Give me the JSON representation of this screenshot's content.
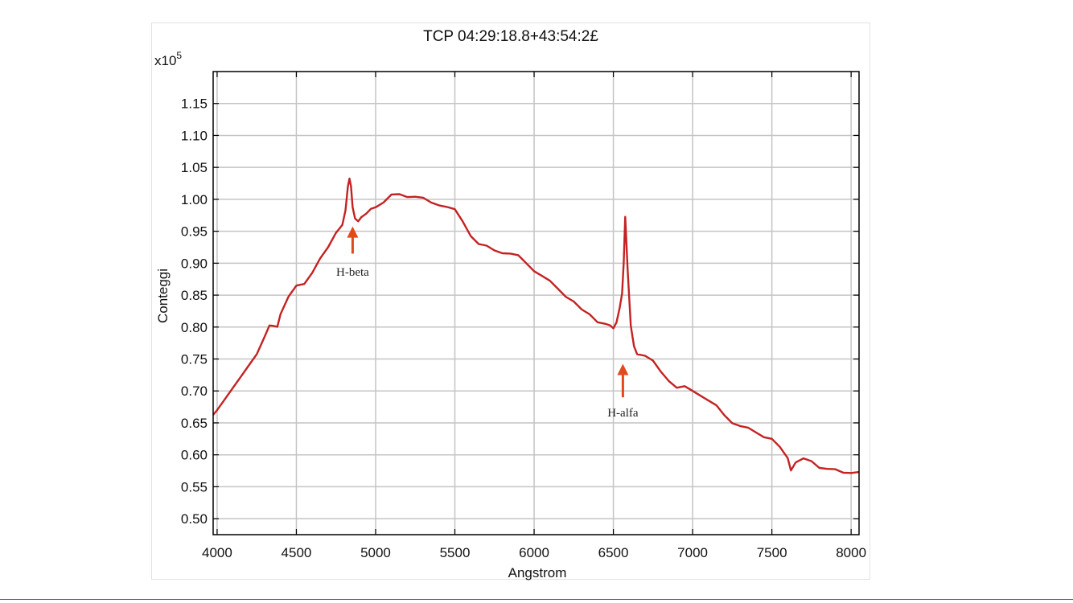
{
  "chart_data": {
    "type": "line",
    "title": "TCP 04:29:18.8+43:54:2£",
    "xlabel": "Angstrom",
    "ylabel": "Conteggi",
    "y_multiplier": "x10",
    "y_multiplier_exp": "5",
    "xlim": [
      3975,
      8050
    ],
    "ylim": [
      0.475,
      1.2
    ],
    "x_ticks": [
      4000,
      4500,
      5000,
      5500,
      6000,
      6500,
      7000,
      7500,
      8000
    ],
    "y_ticks": [
      "0.50",
      "0.55",
      "0.60",
      "0.65",
      "0.70",
      "0.75",
      "0.80",
      "0.85",
      "0.90",
      "0.95",
      "1.00",
      "1.05",
      "1.10",
      "1.15"
    ],
    "grid": true,
    "line_color": "#c42222",
    "series": [
      {
        "x": [
          3975,
          4000,
          4050,
          4100,
          4150,
          4200,
          4250,
          4300,
          4330,
          4350,
          4380,
          4400,
          4450,
          4500,
          4550,
          4600,
          4650,
          4700,
          4750,
          4790,
          4810,
          4825,
          4835,
          4845,
          4855,
          4870,
          4890,
          4910,
          4940,
          4970,
          5000,
          5050,
          5100,
          5150,
          5200,
          5250,
          5300,
          5350,
          5400,
          5450,
          5500,
          5550,
          5600,
          5650,
          5700,
          5750,
          5800,
          5850,
          5900,
          5950,
          6000,
          6050,
          6100,
          6150,
          6200,
          6250,
          6300,
          6350,
          6400,
          6450,
          6480,
          6500,
          6520,
          6540,
          6555,
          6565,
          6575,
          6590,
          6610,
          6630,
          6650,
          6700,
          6750,
          6800,
          6850,
          6900,
          6950,
          7000,
          7050,
          7100,
          7150,
          7200,
          7250,
          7300,
          7350,
          7400,
          7450,
          7500,
          7550,
          7600,
          7620,
          7650,
          7700,
          7750,
          7800,
          7850,
          7900,
          7950,
          8000,
          8050
        ],
        "y": [
          0.66,
          0.67,
          0.69,
          0.705,
          0.72,
          0.74,
          0.76,
          0.785,
          0.8,
          0.802,
          0.803,
          0.82,
          0.845,
          0.865,
          0.87,
          0.885,
          0.905,
          0.925,
          0.95,
          0.96,
          0.98,
          1.02,
          1.035,
          1.02,
          0.985,
          0.97,
          0.968,
          0.972,
          0.975,
          0.985,
          0.99,
          0.995,
          1.005,
          1.008,
          1.006,
          1.004,
          1.0,
          0.995,
          0.993,
          0.988,
          0.982,
          0.965,
          0.945,
          0.93,
          0.925,
          0.92,
          0.918,
          0.915,
          0.91,
          0.9,
          0.89,
          0.88,
          0.87,
          0.86,
          0.85,
          0.84,
          0.825,
          0.82,
          0.81,
          0.805,
          0.8,
          0.798,
          0.81,
          0.83,
          0.85,
          0.9,
          0.975,
          0.89,
          0.8,
          0.77,
          0.76,
          0.755,
          0.745,
          0.73,
          0.718,
          0.705,
          0.705,
          0.7,
          0.695,
          0.685,
          0.675,
          0.662,
          0.652,
          0.645,
          0.64,
          0.635,
          0.63,
          0.625,
          0.61,
          0.595,
          0.578,
          0.588,
          0.592,
          0.59,
          0.582,
          0.578,
          0.575,
          0.572,
          0.574,
          0.573
        ]
      }
    ],
    "annotations": [
      {
        "text": "H-beta",
        "x": 4855,
        "arrow_tip_y": 0.955,
        "arrow_tail_y": 0.915,
        "label_y": 0.88
      },
      {
        "text": "H-alfa",
        "x": 6560,
        "arrow_tip_y": 0.74,
        "arrow_tail_y": 0.69,
        "label_y": 0.66
      }
    ]
  }
}
